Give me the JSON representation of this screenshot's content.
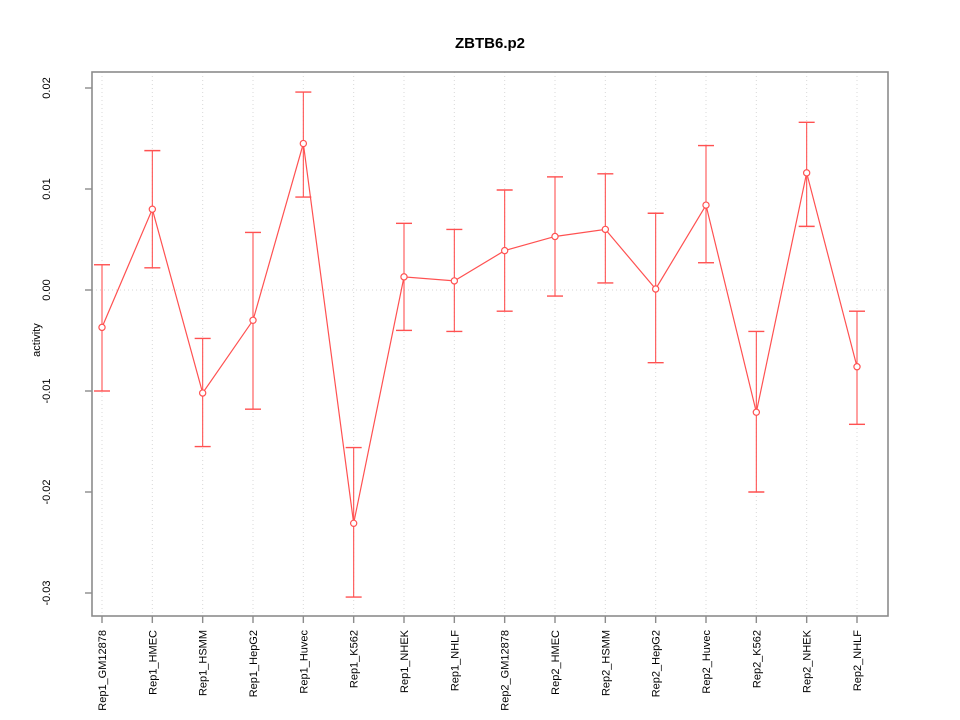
{
  "title": "ZBTB6.p2",
  "chart_data": {
    "type": "line",
    "subtype": "points-with-error-bars",
    "title": "ZBTB6.p2",
    "xlabel": "",
    "ylabel": "activity",
    "ylim": [
      -0.0323,
      0.0216
    ],
    "ytick_labels": [
      "0.02",
      "0.01",
      "0.00",
      "-0.01",
      "-0.02",
      "-0.03"
    ],
    "ytick_values": [
      0.02,
      0.01,
      0.0,
      -0.01,
      -0.02,
      -0.03
    ],
    "grid": "dotted vertical gridline at every category; dotted horizontal reference line at y=0",
    "legend": "none",
    "categories": [
      "Rep1_GM12878",
      "Rep1_HMEC",
      "Rep1_HSMM",
      "Rep1_HepG2",
      "Rep1_Huvec",
      "Rep1_K562",
      "Rep1_NHEK",
      "Rep1_NHLF",
      "Rep2_GM12878",
      "Rep2_HMEC",
      "Rep2_HSMM",
      "Rep2_HepG2",
      "Rep2_Huvec",
      "Rep2_K562",
      "Rep2_NHEK",
      "Rep2_NHLF"
    ],
    "series": [
      {
        "name": "activity",
        "values": [
          -0.0037,
          0.008,
          -0.0102,
          -0.003,
          0.0145,
          -0.0231,
          0.0013,
          0.0009,
          0.0039,
          0.0053,
          0.006,
          0.0001,
          0.0084,
          -0.0121,
          0.0116,
          -0.0076
        ],
        "upper": [
          0.0025,
          0.0138,
          -0.0048,
          0.0057,
          0.0196,
          -0.0156,
          0.0066,
          0.006,
          0.0099,
          0.0112,
          0.0115,
          0.0076,
          0.0143,
          -0.0041,
          0.0166,
          -0.0021
        ],
        "lower": [
          -0.01,
          0.0022,
          -0.0155,
          -0.0118,
          0.0092,
          -0.0304,
          -0.004,
          -0.0041,
          -0.0021,
          -0.0006,
          0.0007,
          -0.0072,
          0.0027,
          -0.02,
          0.0063,
          -0.0133
        ]
      }
    ],
    "colors": {
      "series": "#ff5151",
      "grid": "#d9d9d9",
      "zero_line": "#d4d4d4",
      "box": "#8c8c8c",
      "text": "#000000"
    }
  }
}
